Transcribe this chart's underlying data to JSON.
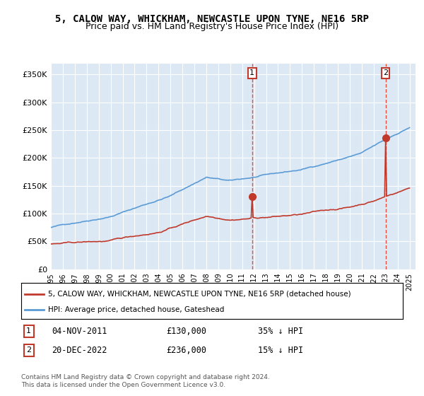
{
  "title": "5, CALOW WAY, WHICKHAM, NEWCASTLE UPON TYNE, NE16 5RP",
  "subtitle": "Price paid vs. HM Land Registry's House Price Index (HPI)",
  "bg_color": "#dce9f5",
  "plot_bg": "#dce9f5",
  "hpi_color": "#5b9bd5",
  "price_color": "#c0392b",
  "dashed_color": "#e74c3c",
  "marker1_date": "2011-11-04",
  "marker2_date": "2022-12-20",
  "marker1_label": "1",
  "marker2_label": "2",
  "marker1_price": 130000,
  "marker2_price": 236000,
  "legend_line1": "5, CALOW WAY, WHICKHAM, NEWCASTLE UPON TYNE, NE16 5RP (detached house)",
  "legend_line2": "HPI: Average price, detached house, Gateshead",
  "table_row1": "04-NOV-2011    £130,000    35% ↓ HPI",
  "table_row2": "20-DEC-2022    £236,000    15% ↓ HPI",
  "footer": "Contains HM Land Registry data © Crown copyright and database right 2024.\nThis data is licensed under the Open Government Licence v3.0.",
  "ylim": [
    0,
    370000
  ],
  "yticks": [
    0,
    50000,
    100000,
    150000,
    200000,
    250000,
    300000,
    350000
  ],
  "ytick_labels": [
    "£0",
    "£50K",
    "£100K",
    "£150K",
    "£200K",
    "£250K",
    "£300K",
    "£350K"
  ]
}
